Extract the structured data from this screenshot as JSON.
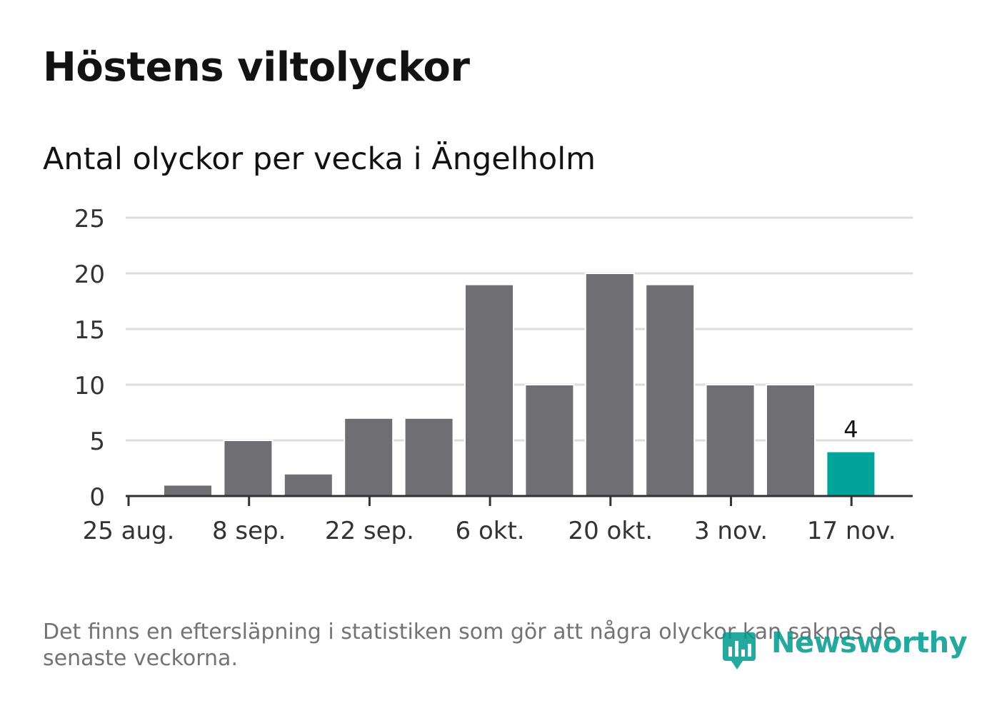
{
  "title": "Höstens viltolyckor",
  "subtitle": "Antal olyckor per vecka i Ängelholm",
  "footnote": "Det finns en eftersläpning i statistiken som gör att några olyckor kan saknas de senaste veckorna.",
  "logo": {
    "text": "Newsworthy"
  },
  "colors": {
    "bar": "#6e6e73",
    "highlight": "#00a49a",
    "grid": "#dddddd",
    "axis": "#333333",
    "text": "#121212",
    "muted": "#737373"
  },
  "chart_data": {
    "type": "bar",
    "title": "Antal olyckor per vecka i Ängelholm",
    "xlabel": "",
    "ylabel": "",
    "ylim": [
      0,
      25
    ],
    "yticks": [
      "0",
      "5",
      "10",
      "15",
      "20",
      "25"
    ],
    "xticks": [
      "25 aug.",
      "8 sep.",
      "22 sep.",
      "6 okt.",
      "20 okt.",
      "3 nov.",
      "17 nov."
    ],
    "values": [
      1,
      5,
      2,
      7,
      7,
      19,
      10,
      20,
      19,
      10,
      10,
      4
    ],
    "highlight_index": 11,
    "annotation": "4",
    "grid": true
  }
}
